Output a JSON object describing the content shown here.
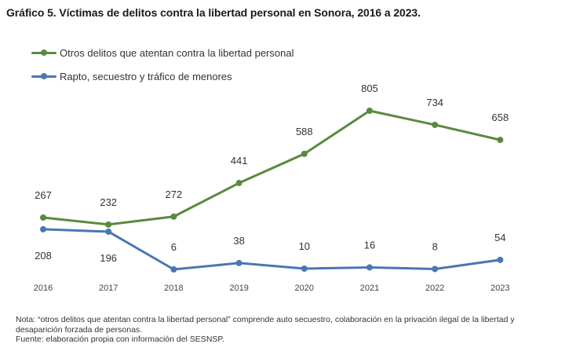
{
  "title": "Gráfico 5. Víctimas de delitos contra la libertad personal en Sonora, 2016 a 2023.",
  "note": "Nota: “otros delitos que atentan contra la libertad personal” comprende auto secuestro, colaboración en la privación ilegal de la libertad y desaparición forzada de personas.",
  "source": "Fuente: elaboración propia con información del SESNSP.",
  "chart_data": {
    "type": "line",
    "title": "Gráfico 5. Víctimas de delitos contra la libertad personal en Sonora, 2016 a 2023.",
    "categories": [
      "2016",
      "2017",
      "2018",
      "2019",
      "2020",
      "2021",
      "2022",
      "2023"
    ],
    "series": [
      {
        "name": "Otros delitos que atentan contra la libertad personal",
        "color": "#5a8a3e",
        "values": [
          267,
          232,
          272,
          441,
          588,
          805,
          734,
          658
        ]
      },
      {
        "name": "Rapto, secuestro y tráfico de menores",
        "color": "#4a77b4",
        "values": [
          208,
          196,
          6,
          38,
          10,
          16,
          8,
          54
        ]
      }
    ],
    "xlabel": "",
    "ylabel": "",
    "ylim": [
      0,
      830
    ],
    "grid": false,
    "legend_position": "top-left",
    "data_labels": true
  }
}
